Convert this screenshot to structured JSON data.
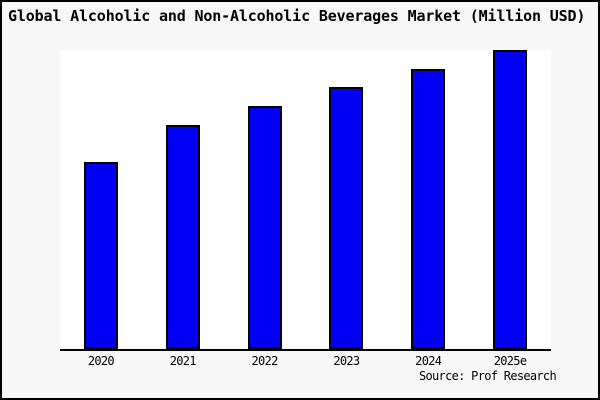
{
  "chart_data": {
    "type": "bar",
    "title": "Global Alcoholic and Non-Alcoholic Beverages Market (Million USD)",
    "categories": [
      "2020",
      "2021",
      "2022",
      "2023",
      "2024",
      "2025e"
    ],
    "values": [
      62.7,
      75.0,
      81.4,
      87.7,
      93.7,
      100.0
    ],
    "values_note": "No y-axis or data labels shown in chart; values are bar heights estimated as percent of the tallest bar (2025e).",
    "xlabel": "",
    "ylabel": "",
    "ylim": [
      0,
      100
    ],
    "grid": false,
    "legend": false,
    "bar_color": "#0000f2",
    "bar_border_color": "#000000",
    "plot_background": "#ffffff",
    "figure_background": "#f7f7f7",
    "axis_color": "#000000"
  },
  "source": "Source: Prof Research"
}
